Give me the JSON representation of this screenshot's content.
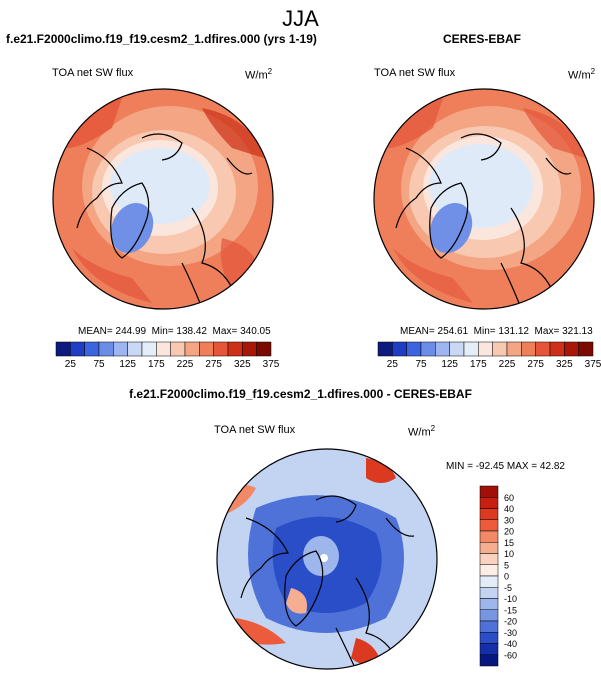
{
  "suptitle": "JJA",
  "chart_data": [
    {
      "type": "heatmap",
      "title": "f.e21.F2000climo.f19_f19.cesm2_1.dfires.000 (yrs 1-19)",
      "variable": "TOA net SW flux",
      "units_base": "W/m",
      "units_exp": "2",
      "stats": {
        "mean": "244.99",
        "min": "138.42",
        "max": "340.05"
      },
      "colorbar": {
        "ticks": [
          "25",
          "75",
          "125",
          "175",
          "225",
          "275",
          "325",
          "375"
        ],
        "colors": [
          "#0d1a7e",
          "#1f3ec4",
          "#3d64df",
          "#6b8de8",
          "#9db5f0",
          "#c8d8f5",
          "#e4eef9",
          "#fbe6dd",
          "#f8c8b0",
          "#f4a584",
          "#ee7f5a",
          "#e4553a",
          "#cc3018",
          "#a81808",
          "#7a0a00"
        ]
      },
      "min_value": 138.42,
      "max_value": 340.05,
      "mean_value": 244.99
    },
    {
      "type": "heatmap",
      "title": "CERES-EBAF",
      "variable": "TOA net SW flux",
      "units_base": "W/m",
      "units_exp": "2",
      "stats": {
        "mean": "254.61",
        "min": "131.12",
        "max": "321.13"
      },
      "colorbar": {
        "ticks": [
          "25",
          "75",
          "125",
          "175",
          "225",
          "275",
          "325",
          "375"
        ],
        "colors": [
          "#0d1a7e",
          "#1f3ec4",
          "#3d64df",
          "#6b8de8",
          "#9db5f0",
          "#c8d8f5",
          "#e4eef9",
          "#fbe6dd",
          "#f8c8b0",
          "#f4a584",
          "#ee7f5a",
          "#e4553a",
          "#cc3018",
          "#a81808",
          "#7a0a00"
        ]
      },
      "min_value": 131.12,
      "max_value": 321.13,
      "mean_value": 254.61
    },
    {
      "type": "heatmap",
      "title": "f.e21.F2000climo.f19_f19.cesm2_1.dfires.000 - CERES-EBAF",
      "variable": "TOA net SW flux",
      "units_base": "W/m",
      "units_exp": "2",
      "stats_text": "MIN = -92.45 MAX =  42.82",
      "min_value": -92.45,
      "max_value": 42.82,
      "colorbar": {
        "ticks": [
          "60",
          "40",
          "30",
          "20",
          "15",
          "10",
          "5",
          "0",
          "-5",
          "-10",
          "-15",
          "-20",
          "-30",
          "-40",
          "-60"
        ],
        "colors": [
          "#a01008",
          "#c62010",
          "#dc3a20",
          "#ec5c3c",
          "#f28864",
          "#f6ae90",
          "#fad2c0",
          "#fbeee6",
          "#e4ecf8",
          "#c2d4f2",
          "#9db6ec",
          "#7696e2",
          "#4f72d8",
          "#2a4ec8",
          "#1430a8",
          "#061880"
        ]
      }
    }
  ]
}
